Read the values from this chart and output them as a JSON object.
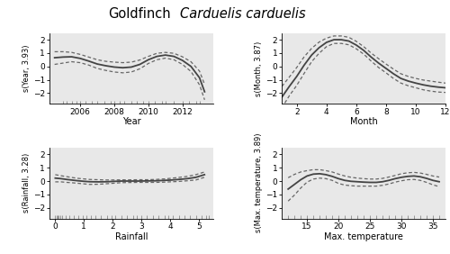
{
  "title_normal": "Goldfinch",
  "title_italic": "Carduelis carduelis",
  "bg_color": "#ffffff",
  "panel_bg": "#e8e8e8",
  "year": {
    "ylabel": "s(Year, 3.93)",
    "xlabel": "Year",
    "xlim": [
      2004.2,
      2013.8
    ],
    "ylim": [
      -2.8,
      2.5
    ],
    "xticks": [
      2006,
      2008,
      2010,
      2012
    ],
    "yticks": [
      -2,
      -1,
      0,
      1,
      2
    ],
    "x": [
      2004.5,
      2005.0,
      2005.5,
      2006.0,
      2006.5,
      2007.0,
      2007.5,
      2008.0,
      2008.5,
      2009.0,
      2009.5,
      2010.0,
      2010.5,
      2011.0,
      2011.5,
      2012.0,
      2012.5,
      2013.0,
      2013.3
    ],
    "y": [
      0.65,
      0.7,
      0.72,
      0.6,
      0.4,
      0.18,
      0.05,
      -0.05,
      -0.1,
      -0.05,
      0.15,
      0.5,
      0.75,
      0.85,
      0.75,
      0.45,
      0.0,
      -0.85,
      -1.9
    ],
    "y_hi": [
      1.1,
      1.1,
      1.05,
      0.9,
      0.7,
      0.5,
      0.38,
      0.32,
      0.28,
      0.32,
      0.48,
      0.75,
      0.98,
      1.05,
      0.98,
      0.72,
      0.35,
      -0.35,
      -1.35
    ],
    "y_lo": [
      0.15,
      0.25,
      0.35,
      0.28,
      0.1,
      -0.15,
      -0.3,
      -0.42,
      -0.48,
      -0.42,
      -0.18,
      0.22,
      0.5,
      0.62,
      0.5,
      0.15,
      -0.38,
      -1.38,
      -2.5
    ],
    "rug_x": [
      2005.0,
      2005.2,
      2005.5,
      2005.8,
      2006.0,
      2006.3,
      2006.7,
      2007.0,
      2007.4,
      2007.8,
      2008.0,
      2008.3,
      2008.6,
      2009.0,
      2009.3,
      2009.7,
      2010.0,
      2010.4,
      2010.8,
      2011.0,
      2011.5,
      2012.0,
      2012.4,
      2012.8,
      2013.0
    ]
  },
  "month": {
    "ylabel": "s(Month, 3.87)",
    "xlabel": "Month",
    "xlim": [
      1,
      12
    ],
    "ylim": [
      -2.8,
      2.5
    ],
    "xticks": [
      2,
      4,
      6,
      8,
      10,
      12
    ],
    "yticks": [
      -2,
      -1,
      0,
      1,
      2
    ],
    "x": [
      1.0,
      1.5,
      2.0,
      2.5,
      3.0,
      3.5,
      4.0,
      4.5,
      5.0,
      5.5,
      6.0,
      6.5,
      7.0,
      7.5,
      8.0,
      8.5,
      9.0,
      9.5,
      10.0,
      10.5,
      11.0,
      11.5,
      12.0
    ],
    "y": [
      -2.3,
      -1.5,
      -0.75,
      0.1,
      0.85,
      1.4,
      1.8,
      2.0,
      2.0,
      1.9,
      1.6,
      1.2,
      0.7,
      0.25,
      -0.15,
      -0.55,
      -0.9,
      -1.1,
      -1.25,
      -1.38,
      -1.48,
      -1.55,
      -1.6
    ],
    "y_hi": [
      -1.5,
      -0.8,
      -0.08,
      0.72,
      1.35,
      1.82,
      2.12,
      2.28,
      2.28,
      2.18,
      1.88,
      1.48,
      1.0,
      0.58,
      0.18,
      -0.2,
      -0.55,
      -0.75,
      -0.9,
      -1.02,
      -1.1,
      -1.18,
      -1.25
    ],
    "y_lo": [
      -3.1,
      -2.2,
      -1.42,
      -0.52,
      0.35,
      0.98,
      1.48,
      1.72,
      1.72,
      1.62,
      1.32,
      0.92,
      0.4,
      -0.08,
      -0.48,
      -0.9,
      -1.25,
      -1.45,
      -1.6,
      -1.75,
      -1.85,
      -1.92,
      -1.95
    ]
  },
  "rainfall": {
    "ylabel": "s(Rainfall, 3.28)",
    "xlabel": "Rainfall",
    "xlim": [
      -0.2,
      5.5
    ],
    "ylim": [
      -2.8,
      2.5
    ],
    "xticks": [
      0,
      1,
      2,
      3,
      4,
      5
    ],
    "yticks": [
      -2,
      -1,
      0,
      1,
      2
    ],
    "x": [
      0.0,
      0.2,
      0.4,
      0.6,
      0.8,
      1.0,
      1.2,
      1.5,
      1.8,
      2.0,
      2.3,
      2.6,
      2.9,
      3.2,
      3.5,
      3.8,
      4.0,
      4.3,
      4.6,
      4.9,
      5.2
    ],
    "y": [
      0.22,
      0.18,
      0.12,
      0.07,
      0.02,
      -0.02,
      -0.05,
      -0.06,
      -0.05,
      -0.03,
      0.0,
      0.0,
      0.0,
      0.01,
      0.02,
      0.05,
      0.07,
      0.12,
      0.18,
      0.28,
      0.48
    ],
    "y_hi": [
      0.48,
      0.4,
      0.33,
      0.26,
      0.2,
      0.16,
      0.12,
      0.1,
      0.08,
      0.08,
      0.09,
      0.09,
      0.1,
      0.1,
      0.12,
      0.16,
      0.2,
      0.27,
      0.35,
      0.48,
      0.68
    ],
    "y_lo": [
      -0.06,
      -0.06,
      -0.1,
      -0.13,
      -0.17,
      -0.21,
      -0.25,
      -0.24,
      -0.2,
      -0.17,
      -0.12,
      -0.11,
      -0.1,
      -0.1,
      -0.1,
      -0.08,
      -0.06,
      -0.03,
      0.02,
      0.08,
      0.28
    ],
    "rug_x": [
      0.0,
      0.05,
      0.08,
      0.12,
      0.18,
      0.25,
      0.35,
      0.5,
      0.65,
      0.8,
      0.95,
      1.1,
      1.25,
      1.4,
      1.6,
      1.8,
      1.95,
      2.1,
      2.3,
      2.5,
      2.7,
      2.85,
      3.0,
      3.2,
      3.4,
      3.6,
      3.8,
      3.95,
      4.1,
      4.3,
      4.5,
      4.7,
      4.9,
      5.1,
      5.25,
      5.35
    ]
  },
  "maxtemp": {
    "ylabel": "s(Max. temperature, 3.89)",
    "xlabel": "Max. temperature",
    "xlim": [
      11,
      37
    ],
    "ylim": [
      -2.8,
      2.5
    ],
    "xticks": [
      15,
      20,
      25,
      30,
      35
    ],
    "yticks": [
      -2,
      -1,
      0,
      1,
      2
    ],
    "x": [
      12,
      13,
      14,
      15,
      16,
      17,
      18,
      19,
      20,
      21,
      22,
      23,
      24,
      25,
      26,
      27,
      28,
      29,
      30,
      31,
      32,
      33,
      34,
      35,
      36
    ],
    "y": [
      -0.6,
      -0.25,
      0.1,
      0.38,
      0.52,
      0.55,
      0.48,
      0.35,
      0.18,
      0.05,
      -0.02,
      -0.05,
      -0.08,
      -0.1,
      -0.1,
      -0.05,
      0.05,
      0.18,
      0.28,
      0.35,
      0.38,
      0.32,
      0.2,
      0.05,
      -0.05
    ],
    "y_hi": [
      0.25,
      0.5,
      0.68,
      0.78,
      0.85,
      0.85,
      0.78,
      0.68,
      0.52,
      0.38,
      0.28,
      0.22,
      0.18,
      0.15,
      0.15,
      0.2,
      0.3,
      0.42,
      0.55,
      0.62,
      0.65,
      0.6,
      0.5,
      0.38,
      0.3
    ],
    "y_lo": [
      -1.5,
      -1.05,
      -0.52,
      -0.08,
      0.15,
      0.22,
      0.18,
      0.05,
      -0.18,
      -0.3,
      -0.35,
      -0.38,
      -0.38,
      -0.38,
      -0.38,
      -0.32,
      -0.22,
      -0.08,
      0.02,
      0.1,
      0.12,
      0.05,
      -0.1,
      -0.28,
      -0.42
    ],
    "rug_x": [
      12,
      13,
      14,
      15,
      16,
      17,
      18,
      19,
      20,
      21,
      22,
      23,
      24,
      25,
      26,
      27,
      28,
      29,
      30,
      31,
      32,
      33,
      34,
      35,
      36
    ]
  },
  "line_color": "#444444",
  "ci_color": "#666666",
  "rug_color": "#888888",
  "line_width": 1.3,
  "ci_lw": 0.9
}
